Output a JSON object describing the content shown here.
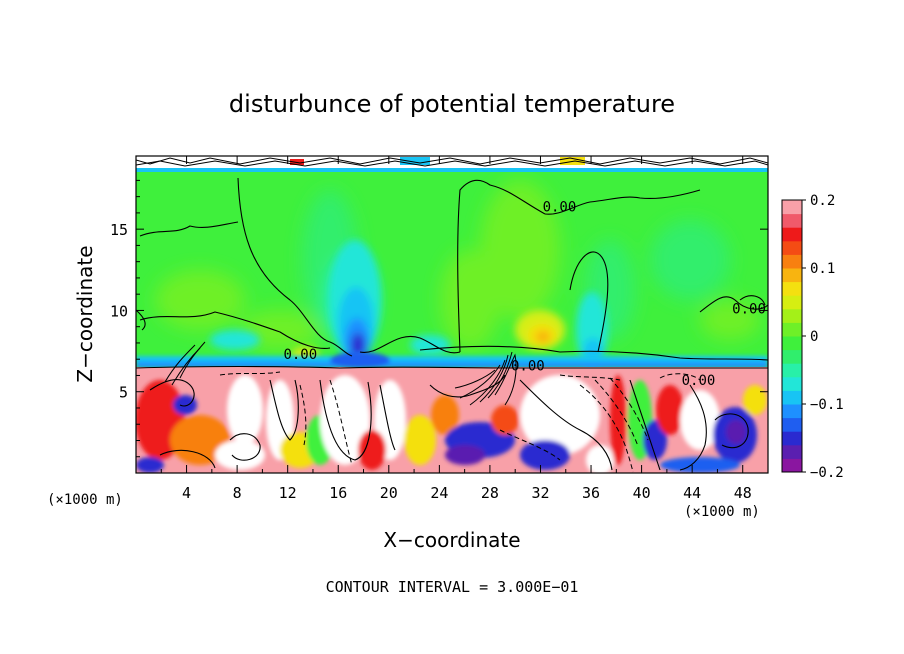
{
  "chart_data": {
    "type": "heatmap",
    "title": "disturbunce of potential temperature",
    "xlabel": "X−coordinate",
    "ylabel": "Z−coordinate",
    "x_unit_left": "(×1000 m)",
    "x_unit_right": "(×1000 m)",
    "footer": "CONTOUR INTERVAL = 3.000E−01",
    "xlim": [
      0,
      50
    ],
    "ylim": [
      0,
      19.5
    ],
    "x_ticks": [
      4,
      8,
      12,
      16,
      20,
      24,
      28,
      32,
      36,
      40,
      44,
      48
    ],
    "x_tick_labels": [
      "4",
      "8",
      "12",
      "16",
      "20",
      "24",
      "28",
      "32",
      "36",
      "40",
      "44",
      "48"
    ],
    "y_ticks": [
      5,
      10,
      15
    ],
    "y_tick_labels": [
      "5",
      "10",
      "15"
    ],
    "contour_labels": [
      {
        "text": "0.00",
        "x": 33.5,
        "y": 16.1
      },
      {
        "text": "0.00",
        "x": 13.0,
        "y": 7.0
      },
      {
        "text": "0.00",
        "x": 31.0,
        "y": 6.3
      },
      {
        "text": "0.00",
        "x": 48.5,
        "y": 9.8
      },
      {
        "text": "0.00",
        "x": 44.5,
        "y": 5.4
      }
    ],
    "colorbar": {
      "min": -0.2,
      "max": 0.2,
      "ticks": [
        -0.2,
        -0.1,
        0,
        0.1,
        0.2
      ],
      "tick_labels": [
        "−0.2",
        "−0.1",
        "0",
        "0.1",
        "0.2"
      ],
      "colors": [
        "#8a16a0",
        "#5a1fb0",
        "#2a2ad0",
        "#1f5ef0",
        "#1e90ff",
        "#18c4f4",
        "#22e6d8",
        "#28f0a8",
        "#30ee6c",
        "#3ff03c",
        "#6ef028",
        "#a4f018",
        "#d6ee12",
        "#f4e010",
        "#f8b410",
        "#f88010",
        "#f44c14",
        "#ee1a1a",
        "#f05a6a",
        "#f8a0a8"
      ]
    },
    "features": [
      {
        "kind": "upper_noise_band",
        "z_from": 18.9,
        "z_to": 19.5
      },
      {
        "kind": "near_neutral_upper_field",
        "value": 0.02
      },
      {
        "kind": "cool_plume",
        "x": 18,
        "z": 9.5,
        "value": -0.15
      },
      {
        "kind": "cool_plume",
        "x": 36,
        "z": 7.5,
        "value": -0.12
      },
      {
        "kind": "warm_patch",
        "x": 31,
        "z": 8.8,
        "value": 0.1
      },
      {
        "kind": "turbulent_lower_layer",
        "z_from": 0,
        "z_to": 6.5
      }
    ]
  }
}
